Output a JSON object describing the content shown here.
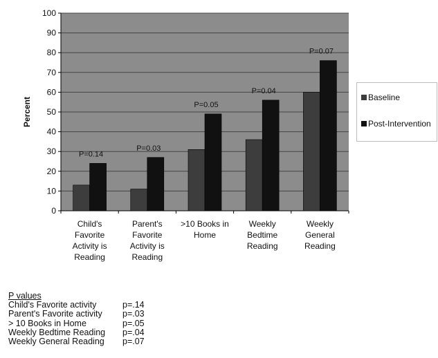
{
  "chart_data": {
    "type": "bar",
    "ylabel": "Percent",
    "ylim": [
      0,
      100
    ],
    "yticks": [
      0,
      10,
      20,
      30,
      40,
      50,
      60,
      70,
      80,
      90,
      100
    ],
    "grid": true,
    "legend_position": "right",
    "categories": [
      [
        "Child's",
        "Favorite",
        "Activity is",
        "Reading"
      ],
      [
        "Parent's",
        "Favorite",
        "Activity is",
        "Reading"
      ],
      [
        ">10 Books in",
        "Home"
      ],
      [
        "Weekly",
        "Bedtime",
        "Reading"
      ],
      [
        "Weekly",
        "General",
        "Reading"
      ]
    ],
    "series": [
      {
        "name": "Baseline",
        "values": [
          13,
          11,
          31,
          36,
          60
        ]
      },
      {
        "name": "Post-Intervention",
        "values": [
          24,
          27,
          49,
          56,
          76
        ]
      }
    ],
    "annotations": [
      "P=0.14",
      "P=0.03",
      "P=0.05",
      "P=0.04",
      "P=0.07"
    ],
    "colors": {
      "plot_bg": "#8c8c8c",
      "baseline": "#3d3d3d",
      "post": "#111111",
      "grid": "#444444"
    }
  },
  "pvalues": {
    "heading": "P values",
    "rows": [
      {
        "label": "Child's Favorite activity",
        "value": "p=.14"
      },
      {
        "label": "Parent's Favorite activity",
        "value": "p=.03"
      },
      {
        "label": "> 10 Books in Home",
        "value": "p=.05"
      },
      {
        "label": "Weekly Bedtime Reading",
        "value": "p=.04"
      },
      {
        "label": "Weekly General Reading",
        "value": "p=.07"
      }
    ]
  }
}
